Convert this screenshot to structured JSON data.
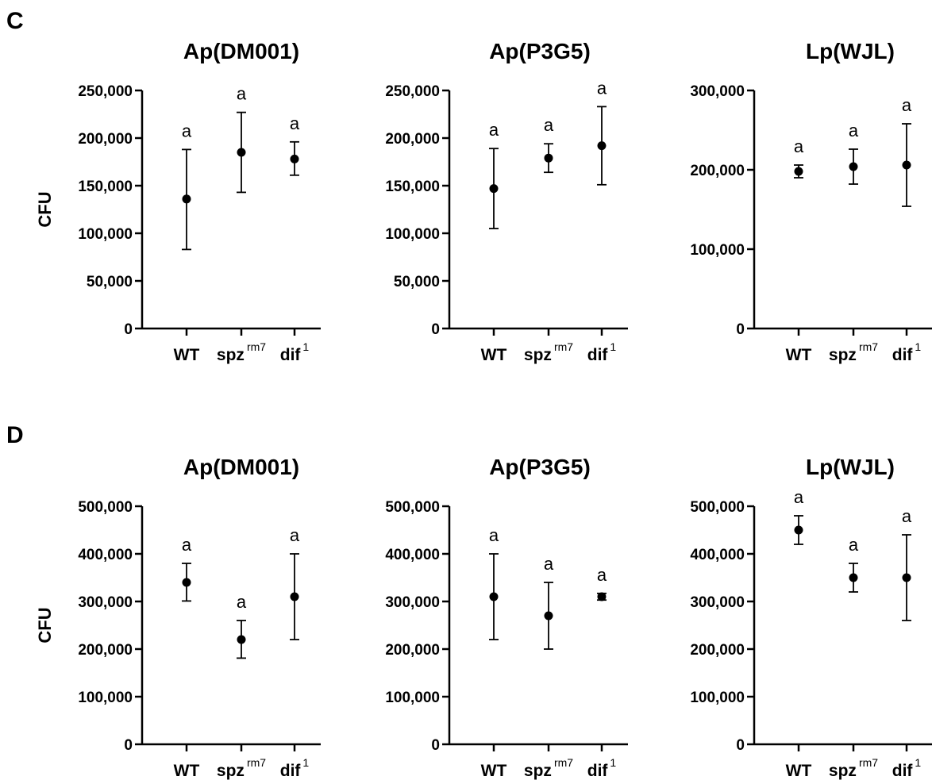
{
  "panels": [
    {
      "letter": "C"
    },
    {
      "letter": "D"
    }
  ],
  "chart_data": [
    {
      "type": "scatter",
      "panel": "C",
      "title": "Ap(DM001)",
      "ylabel": "CFU",
      "ylim": [
        0,
        250000
      ],
      "yticks": [
        0,
        50000,
        100000,
        150000,
        200000,
        250000
      ],
      "ytick_labels": [
        "0",
        "50,000",
        "100,000",
        "150,000",
        "200,000",
        "250,000"
      ],
      "categories": [
        {
          "base": "WT",
          "sup": ""
        },
        {
          "base": "spz",
          "sup": "rm7"
        },
        {
          "base": "dif",
          "sup": "1"
        }
      ],
      "values": [
        136000,
        185000,
        178000
      ],
      "err_low": [
        83000,
        143000,
        161000
      ],
      "err_high": [
        188000,
        227000,
        196000
      ],
      "annotations": [
        "a",
        "a",
        "a"
      ]
    },
    {
      "type": "scatter",
      "panel": "C",
      "title": "Ap(P3G5)",
      "ylabel": "",
      "ylim": [
        0,
        250000
      ],
      "yticks": [
        0,
        50000,
        100000,
        150000,
        200000,
        250000
      ],
      "ytick_labels": [
        "0",
        "50,000",
        "100,000",
        "150,000",
        "200,000",
        "250,000"
      ],
      "categories": [
        {
          "base": "WT",
          "sup": ""
        },
        {
          "base": "spz",
          "sup": "rm7"
        },
        {
          "base": "dif",
          "sup": "1"
        }
      ],
      "values": [
        147000,
        179000,
        192000
      ],
      "err_low": [
        105000,
        164000,
        151000
      ],
      "err_high": [
        189000,
        194000,
        233000
      ],
      "annotations": [
        "a",
        "a",
        "a"
      ]
    },
    {
      "type": "scatter",
      "panel": "C",
      "title": "Lp(WJL)",
      "ylabel": "",
      "ylim": [
        0,
        300000
      ],
      "yticks": [
        0,
        100000,
        200000,
        300000
      ],
      "ytick_labels": [
        "0",
        "100,000",
        "200,000",
        "300,000"
      ],
      "categories": [
        {
          "base": "WT",
          "sup": ""
        },
        {
          "base": "spz",
          "sup": "rm7"
        },
        {
          "base": "dif",
          "sup": "1"
        }
      ],
      "values": [
        198000,
        204000,
        206000
      ],
      "err_low": [
        190000,
        182000,
        154000
      ],
      "err_high": [
        206000,
        226000,
        258000
      ],
      "annotations": [
        "a",
        "a",
        "a"
      ]
    },
    {
      "type": "scatter",
      "panel": "D",
      "title": "Ap(DM001)",
      "ylabel": "CFU",
      "ylim": [
        0,
        500000
      ],
      "yticks": [
        0,
        100000,
        200000,
        300000,
        400000,
        500000
      ],
      "ytick_labels": [
        "0",
        "100,000",
        "200,000",
        "300,000",
        "400,000",
        "500,000"
      ],
      "categories": [
        {
          "base": "WT",
          "sup": ""
        },
        {
          "base": "spz",
          "sup": "rm7"
        },
        {
          "base": "dif",
          "sup": "1"
        }
      ],
      "values": [
        340000,
        220000,
        310000
      ],
      "err_low": [
        301000,
        181000,
        220000
      ],
      "err_high": [
        380000,
        260000,
        400000
      ],
      "annotations": [
        "a",
        "a",
        "a"
      ]
    },
    {
      "type": "scatter",
      "panel": "D",
      "title": "Ap(P3G5)",
      "ylabel": "",
      "ylim": [
        0,
        500000
      ],
      "yticks": [
        0,
        100000,
        200000,
        300000,
        400000,
        500000
      ],
      "ytick_labels": [
        "0",
        "100,000",
        "200,000",
        "300,000",
        "400,000",
        "500,000"
      ],
      "categories": [
        {
          "base": "WT",
          "sup": ""
        },
        {
          "base": "spz",
          "sup": "rm7"
        },
        {
          "base": "dif",
          "sup": "1"
        }
      ],
      "values": [
        310000,
        270000,
        310000
      ],
      "err_low": [
        220000,
        200000,
        303000
      ],
      "err_high": [
        400000,
        340000,
        317000
      ],
      "annotations": [
        "a",
        "a",
        "a"
      ]
    },
    {
      "type": "scatter",
      "panel": "D",
      "title": "Lp(WJL)",
      "ylabel": "",
      "ylim": [
        0,
        500000
      ],
      "yticks": [
        0,
        100000,
        200000,
        300000,
        400000,
        500000
      ],
      "ytick_labels": [
        "0",
        "100,000",
        "200,000",
        "300,000",
        "400,000",
        "500,000"
      ],
      "categories": [
        {
          "base": "WT",
          "sup": ""
        },
        {
          "base": "spz",
          "sup": "rm7"
        },
        {
          "base": "dif",
          "sup": "1"
        }
      ],
      "values": [
        450000,
        350000,
        350000
      ],
      "err_low": [
        420000,
        320000,
        260000
      ],
      "err_high": [
        480000,
        380000,
        440000
      ],
      "annotations": [
        "a",
        "a",
        "a"
      ]
    }
  ]
}
